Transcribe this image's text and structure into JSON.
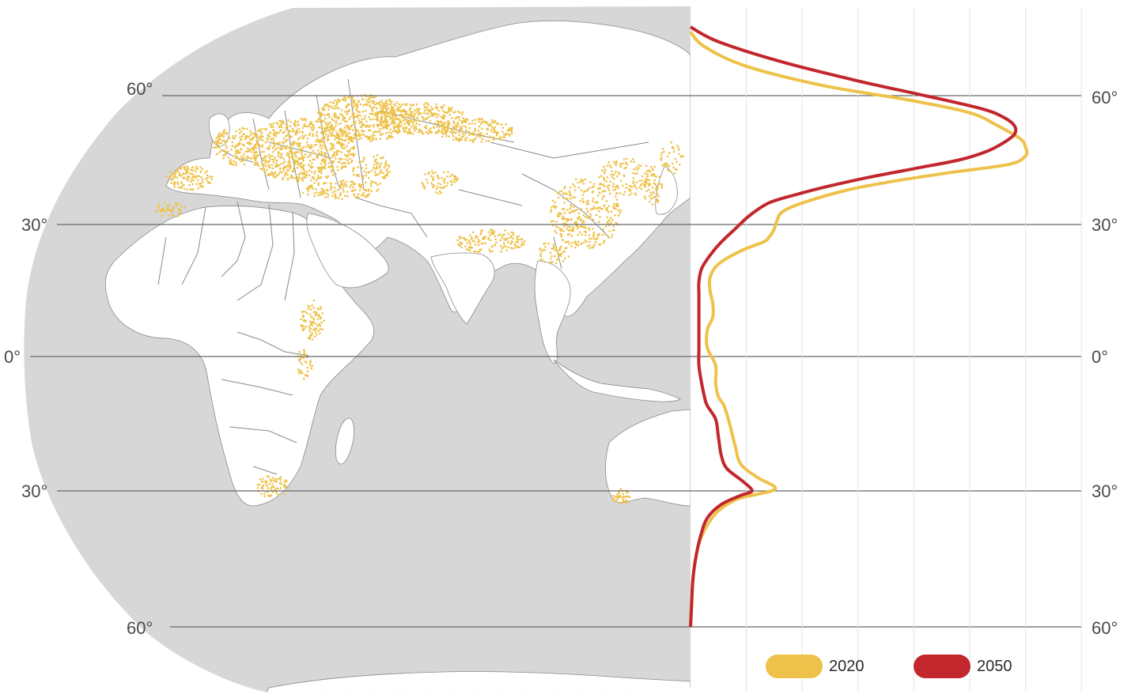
{
  "map": {
    "land_color": "#ffffff",
    "ocean_color": "#d7d7d7",
    "border_color": "#8a8a8a",
    "occurrence_color": "#eec24a",
    "occurrence_regions": [
      "Europe",
      "Western Russia",
      "Caucasus",
      "Central Asia",
      "Himalaya",
      "China",
      "Korea",
      "Japan",
      "Ethiopia",
      "East Africa",
      "South Africa",
      "Southwest Australia",
      "North Africa"
    ]
  },
  "latitudes": {
    "left_labels": [
      "60°",
      "30°",
      "0°",
      "30°",
      "60°"
    ],
    "right_labels": [
      "60°",
      "30°",
      "0°",
      "30°",
      "60°"
    ],
    "values": [
      60,
      30,
      0,
      -30,
      -60
    ]
  },
  "chart_data": {
    "type": "line",
    "orientation": "horizontal-density-by-latitude",
    "ylim": [
      -60,
      75
    ],
    "xlim": [
      0,
      7
    ],
    "grid": true,
    "series": [
      {
        "name": "2020",
        "color": "#eec24a",
        "points": [
          [
            73,
            0.0
          ],
          [
            70,
            0.25
          ],
          [
            66,
            1.0
          ],
          [
            62,
            2.4
          ],
          [
            59,
            3.9
          ],
          [
            56,
            5.0
          ],
          [
            53,
            5.5
          ],
          [
            50,
            5.9
          ],
          [
            48,
            6.0
          ],
          [
            46,
            6.0
          ],
          [
            44,
            5.7
          ],
          [
            42,
            4.6
          ],
          [
            40,
            3.6
          ],
          [
            38,
            2.8
          ],
          [
            35,
            2.0
          ],
          [
            33,
            1.65
          ],
          [
            31,
            1.55
          ],
          [
            29,
            1.5
          ],
          [
            27,
            1.4
          ],
          [
            26,
            1.3
          ],
          [
            24,
            0.9
          ],
          [
            21,
            0.5
          ],
          [
            18,
            0.35
          ],
          [
            15,
            0.35
          ],
          [
            12,
            0.4
          ],
          [
            9,
            0.4
          ],
          [
            6,
            0.3
          ],
          [
            2,
            0.3
          ],
          [
            -2,
            0.45
          ],
          [
            -6,
            0.45
          ],
          [
            -9,
            0.5
          ],
          [
            -11,
            0.6
          ],
          [
            -15,
            0.7
          ],
          [
            -20,
            0.8
          ],
          [
            -24,
            0.9
          ],
          [
            -27,
            1.2
          ],
          [
            -29,
            1.5
          ],
          [
            -30,
            1.45
          ],
          [
            -31,
            1.1
          ],
          [
            -32,
            0.8
          ],
          [
            -35,
            0.45
          ],
          [
            -40,
            0.2
          ],
          [
            -45,
            0.09
          ],
          [
            -50,
            0.04
          ],
          [
            -55,
            0.02
          ],
          [
            -60,
            0.0
          ]
        ]
      },
      {
        "name": "2050",
        "color": "#c1272d",
        "points": [
          [
            74,
            0.0
          ],
          [
            71,
            0.5
          ],
          [
            67,
            1.6
          ],
          [
            63,
            3.0
          ],
          [
            60,
            4.2
          ],
          [
            57,
            5.2
          ],
          [
            55,
            5.6
          ],
          [
            53,
            5.8
          ],
          [
            51,
            5.8
          ],
          [
            49,
            5.6
          ],
          [
            47,
            5.3
          ],
          [
            45,
            4.8
          ],
          [
            43,
            4.0
          ],
          [
            41,
            3.2
          ],
          [
            39,
            2.5
          ],
          [
            37,
            1.9
          ],
          [
            35,
            1.4
          ],
          [
            32,
            1.05
          ],
          [
            29,
            0.8
          ],
          [
            26,
            0.55
          ],
          [
            23,
            0.35
          ],
          [
            20,
            0.2
          ],
          [
            17,
            0.15
          ],
          [
            14,
            0.15
          ],
          [
            10,
            0.15
          ],
          [
            6,
            0.15
          ],
          [
            2,
            0.15
          ],
          [
            -2,
            0.15
          ],
          [
            -6,
            0.2
          ],
          [
            -9,
            0.25
          ],
          [
            -11,
            0.3
          ],
          [
            -14,
            0.45
          ],
          [
            -18,
            0.5
          ],
          [
            -22,
            0.55
          ],
          [
            -25,
            0.65
          ],
          [
            -28,
            0.95
          ],
          [
            -30,
            1.1
          ],
          [
            -31,
            0.9
          ],
          [
            -33,
            0.55
          ],
          [
            -36,
            0.3
          ],
          [
            -40,
            0.18
          ],
          [
            -45,
            0.09
          ],
          [
            -50,
            0.04
          ],
          [
            -55,
            0.02
          ],
          [
            -60,
            0.0
          ]
        ]
      }
    ],
    "legend": {
      "placement": "bottom-right",
      "entries": [
        {
          "label": "2020",
          "color": "#eec24a"
        },
        {
          "label": "2050",
          "color": "#c1272d"
        }
      ]
    }
  }
}
